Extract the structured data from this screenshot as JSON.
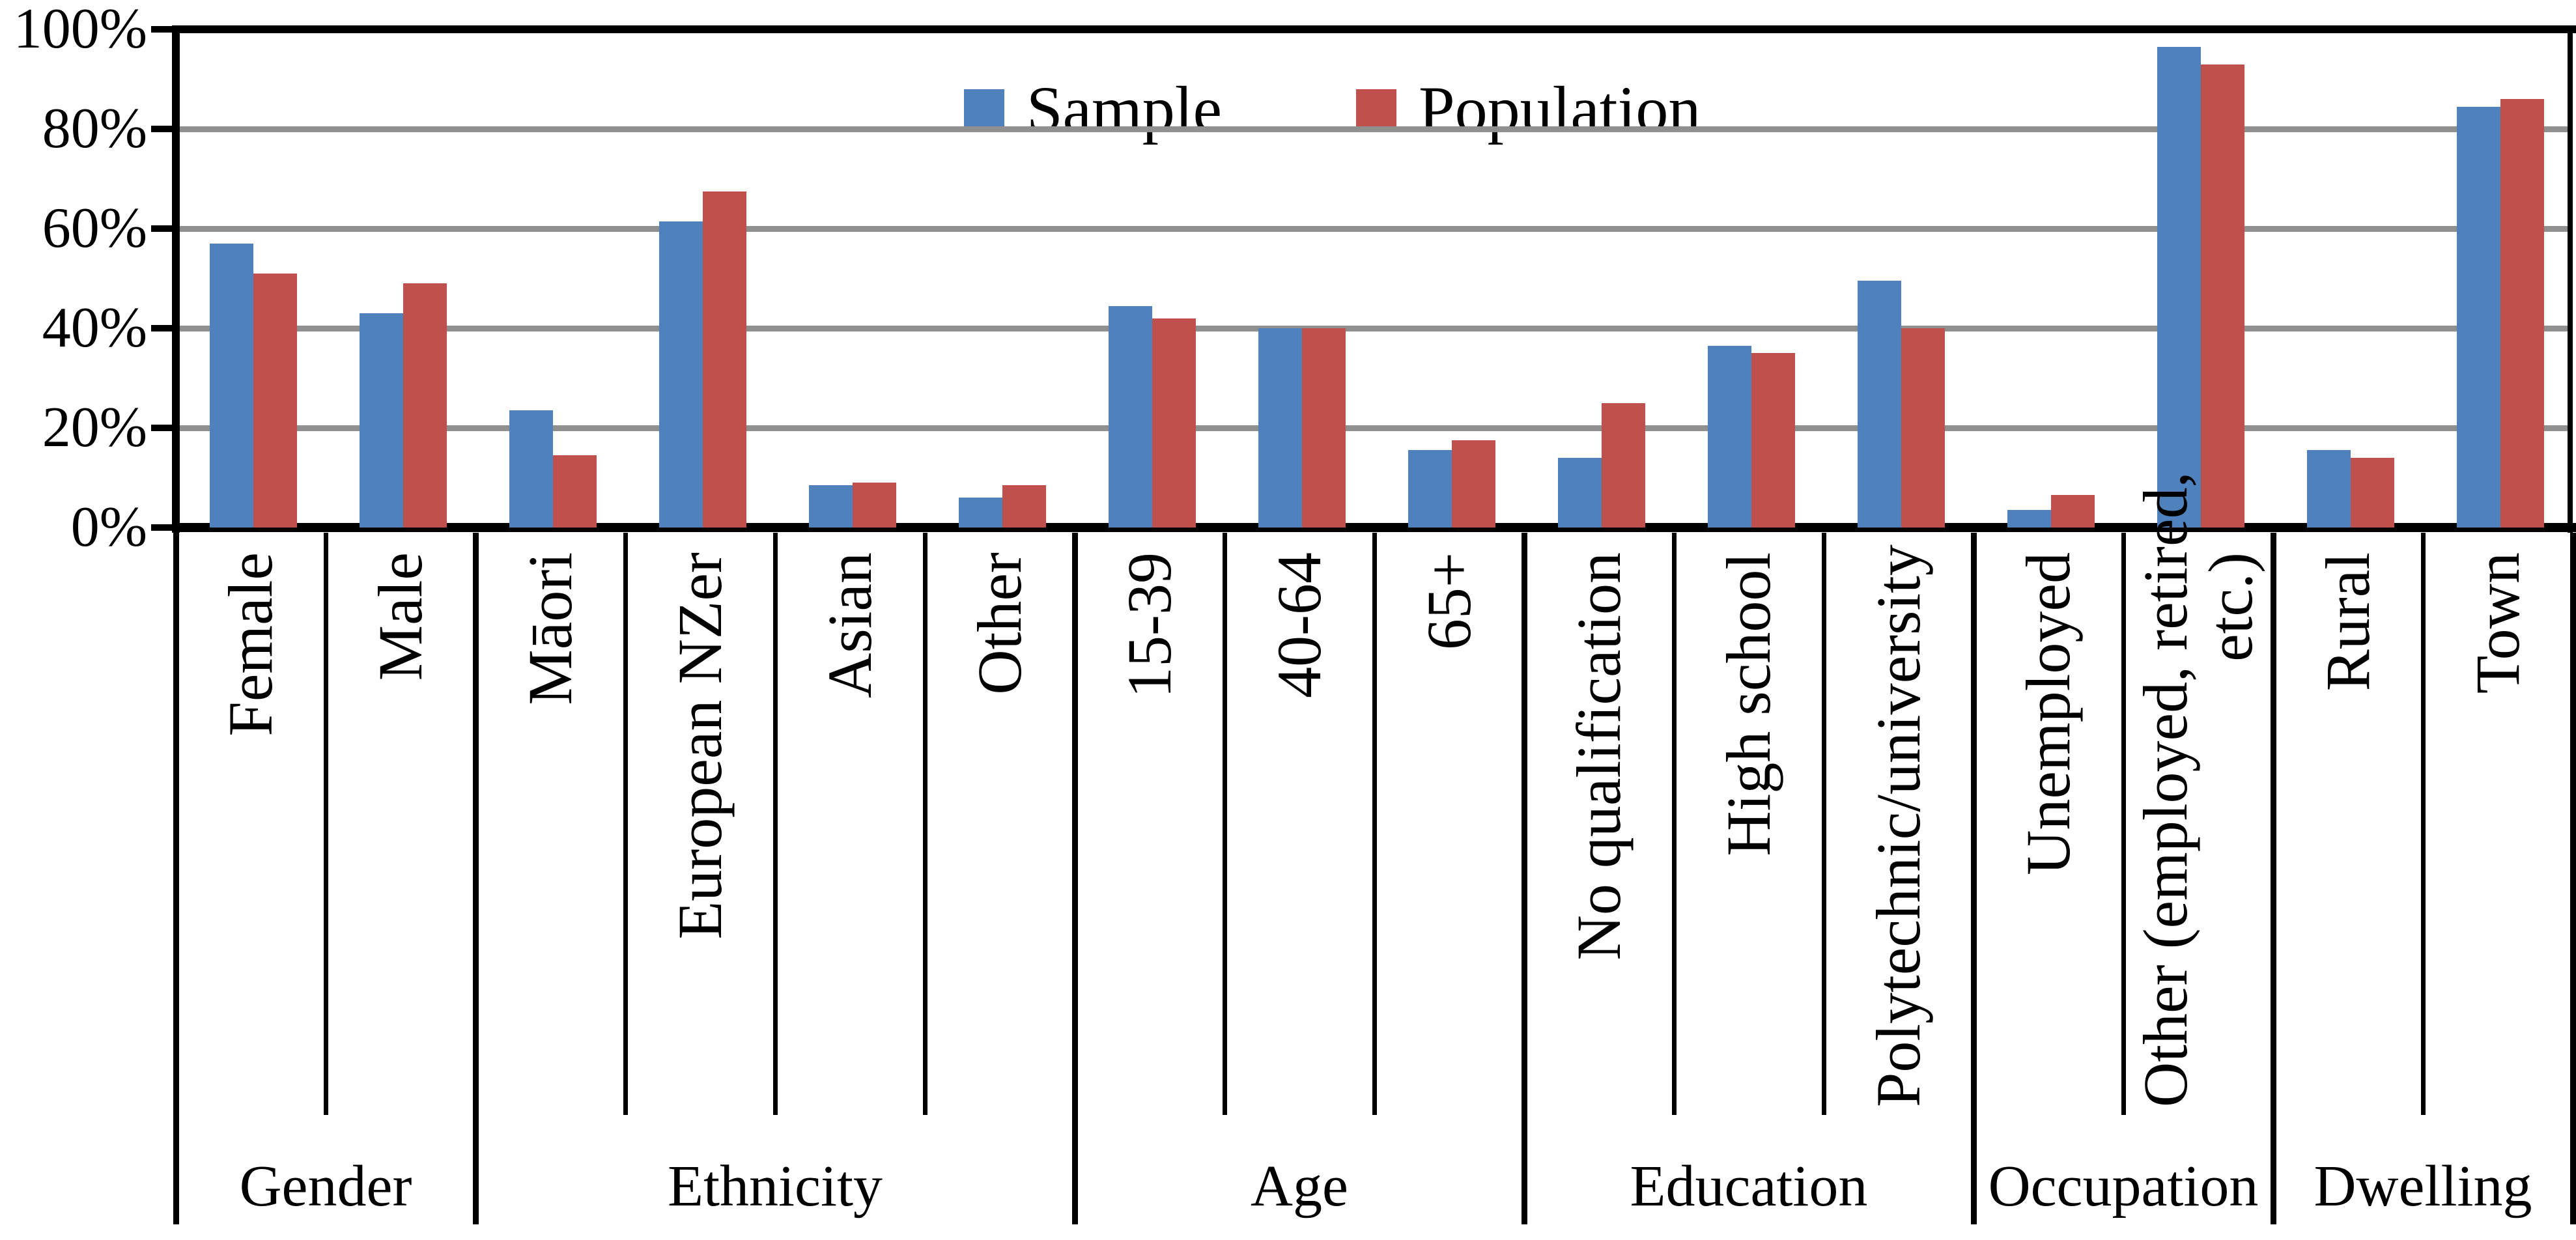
{
  "page": {
    "background": "#FFFFFF",
    "title": ""
  },
  "chart_data": {
    "type": "bar",
    "title": "",
    "xlabel": "",
    "ylabel": "",
    "legend": {
      "position": "top-center",
      "items": [
        {
          "label": "Sample",
          "color": "#4F81BD"
        },
        {
          "label": "Population",
          "color": "#C0504D"
        }
      ]
    },
    "y_axis": {
      "min": 0,
      "max": 100,
      "step": 20,
      "tick_labels": [
        "0%",
        "20%",
        "40%",
        "60%",
        "80%",
        "100%"
      ],
      "gridlines": true,
      "gridline_color": "#909090",
      "axis_color": "#000000"
    },
    "series": [
      {
        "name": "Sample",
        "color": "#4F81BD",
        "values": [
          57,
          43,
          23.5,
          61.5,
          8.5,
          6,
          44.5,
          40,
          15.5,
          14,
          36.5,
          49.5,
          3.5,
          96.5,
          15.5,
          84.5
        ]
      },
      {
        "name": "Population",
        "color": "#C0504D",
        "values": [
          51,
          49,
          14.5,
          67.5,
          9,
          8.5,
          42,
          40,
          17.5,
          25,
          35,
          40,
          6.5,
          93,
          14,
          86
        ]
      }
    ],
    "categories": [
      {
        "label": "Female",
        "lines": [
          "Female"
        ]
      },
      {
        "label": "Male",
        "lines": [
          "Male"
        ]
      },
      {
        "label": "Māori",
        "lines": [
          "Māori"
        ]
      },
      {
        "label": "European NZer",
        "lines": [
          "European NZer"
        ]
      },
      {
        "label": "Asian",
        "lines": [
          "Asian"
        ]
      },
      {
        "label": "Other",
        "lines": [
          "Other"
        ]
      },
      {
        "label": "15-39",
        "lines": [
          "15-39"
        ]
      },
      {
        "label": "40-64",
        "lines": [
          "40-64"
        ]
      },
      {
        "label": "65+",
        "lines": [
          "65+"
        ]
      },
      {
        "label": "No qualification",
        "lines": [
          "No qualification"
        ]
      },
      {
        "label": "High school",
        "lines": [
          "High school"
        ]
      },
      {
        "label": "Polytechnic/university",
        "lines": [
          "Polytechnic/university"
        ]
      },
      {
        "label": "Unemployed",
        "lines": [
          "Unemployed"
        ]
      },
      {
        "label": "Other (employed, retired, etc.)",
        "lines": [
          "Other (employed, retired,",
          "etc.)"
        ]
      },
      {
        "label": "Rural",
        "lines": [
          "Rural"
        ]
      },
      {
        "label": "Town",
        "lines": [
          "Town"
        ]
      }
    ],
    "groups": [
      {
        "label": "Gender",
        "span": 2
      },
      {
        "label": "Ethnicity",
        "span": 4
      },
      {
        "label": "Age",
        "span": 3
      },
      {
        "label": "Education",
        "span": 3
      },
      {
        "label": "Occupation",
        "span": 2
      },
      {
        "label": "Dwelling",
        "span": 2
      }
    ]
  }
}
